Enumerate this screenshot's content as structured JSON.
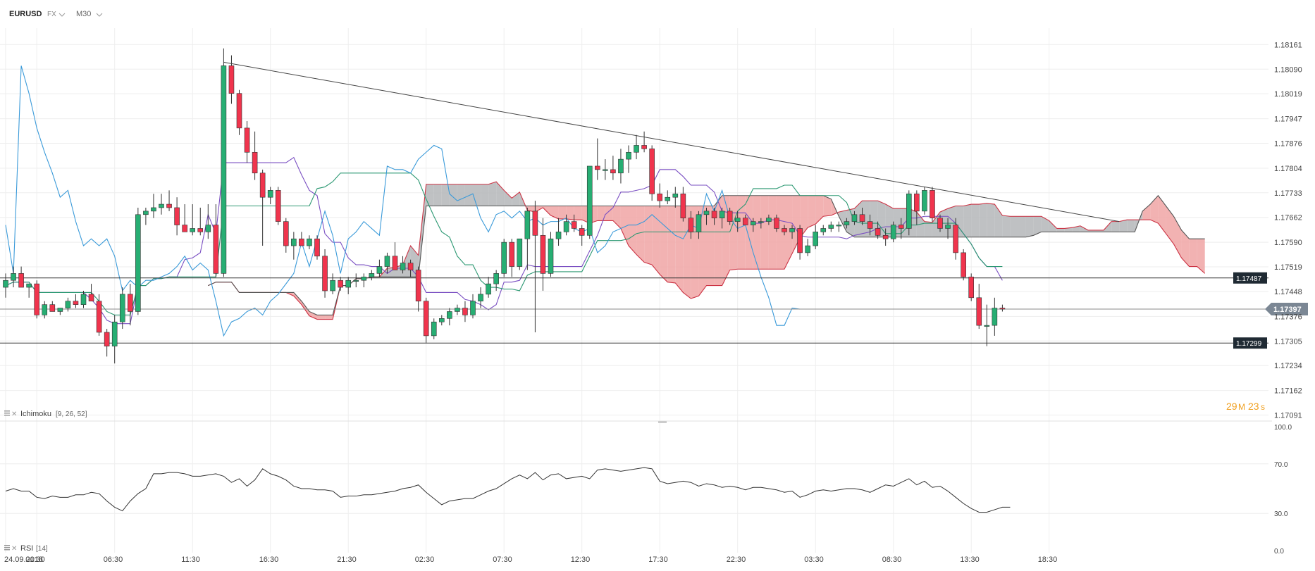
{
  "header": {
    "symbol": "EURUSD",
    "market": "FX",
    "timeframe": "M30"
  },
  "indicator_labels": {
    "ichimoku": "Ichimoku",
    "ichimoku_params": "[9, 26, 52]",
    "rsi": "RSI",
    "rsi_params": "[14]"
  },
  "countdown": {
    "minutes": "29",
    "minutes_unit": "M",
    "seconds": "23",
    "seconds_unit": "s"
  },
  "colors": {
    "bull": "#27ae73",
    "bear": "#f0344d",
    "cloud_bear": "#f0a4a4",
    "cloud_bull": "#b4b6b9",
    "tenkan": "#7a4fc2",
    "kijun": "#2b9872",
    "chikou": "#3a9ad9",
    "price_line": "#333333",
    "trend_line": "#444444",
    "grid": "#eeeeee"
  },
  "chart_data": [
    {
      "type": "candlestick",
      "title": "",
      "symbol": "EURUSD",
      "timeframe": "M30",
      "y_ticks": [
        "1.18161",
        "1.18090",
        "1.18019",
        "1.17947",
        "1.17876",
        "1.17804",
        "1.17733",
        "1.17662",
        "1.17590",
        "1.17519",
        "1.17448",
        "1.17376",
        "1.17305",
        "1.17234",
        "1.17162",
        "1.17091"
      ],
      "x_ticks": [
        "24.09.2018",
        "01:30",
        "06:30",
        "11:30",
        "16:30",
        "21:30",
        "02:30",
        "07:30",
        "12:30",
        "17:30",
        "22:30",
        "03:30",
        "08:30",
        "13:30",
        "18:30"
      ],
      "ylim": [
        1.1709,
        1.1818
      ],
      "horizontal_levels": [
        {
          "label": "1.17487",
          "value": 1.17487
        },
        {
          "label": "1.17397",
          "value": 1.17397,
          "current": true
        },
        {
          "label": "1.17299",
          "value": 1.17299
        }
      ],
      "grid": true,
      "candles": [
        [
          1.1746,
          1.175,
          1.1743,
          1.1748
        ],
        [
          1.1748,
          1.1752,
          1.1746,
          1.175
        ],
        [
          1.175,
          1.1752,
          1.1747,
          1.1746
        ],
        [
          1.1746,
          1.1747,
          1.1743,
          1.1747
        ],
        [
          1.1747,
          1.1748,
          1.1737,
          1.1738
        ],
        [
          1.1738,
          1.1742,
          1.1737,
          1.1741
        ],
        [
          1.1741,
          1.1742,
          1.1739,
          1.1739
        ],
        [
          1.1739,
          1.174,
          1.1738,
          1.174
        ],
        [
          1.174,
          1.1743,
          1.1739,
          1.1742
        ],
        [
          1.1742,
          1.1744,
          1.174,
          1.1741
        ],
        [
          1.1741,
          1.1745,
          1.174,
          1.1744
        ],
        [
          1.1744,
          1.1747,
          1.1742,
          1.1742
        ],
        [
          1.1742,
          1.1744,
          1.1732,
          1.1733
        ],
        [
          1.1733,
          1.1734,
          1.1726,
          1.1729
        ],
        [
          1.1729,
          1.1738,
          1.1724,
          1.1736
        ],
        [
          1.1736,
          1.1746,
          1.1734,
          1.1744
        ],
        [
          1.1744,
          1.1747,
          1.1735,
          1.1739
        ],
        [
          1.1739,
          1.1769,
          1.1738,
          1.1767
        ],
        [
          1.1767,
          1.1769,
          1.1764,
          1.1768
        ],
        [
          1.1768,
          1.1773,
          1.1766,
          1.1769
        ],
        [
          1.1769,
          1.1773,
          1.1767,
          1.177
        ],
        [
          1.177,
          1.1774,
          1.1768,
          1.1769
        ],
        [
          1.1769,
          1.1772,
          1.1761,
          1.1764
        ],
        [
          1.1764,
          1.177,
          1.1762,
          1.1762
        ],
        [
          1.1762,
          1.177,
          1.1761,
          1.1763
        ],
        [
          1.1763,
          1.1769,
          1.1761,
          1.1762
        ],
        [
          1.1762,
          1.177,
          1.176,
          1.1764
        ],
        [
          1.1764,
          1.177,
          1.1749,
          1.175
        ],
        [
          1.175,
          1.1815,
          1.1749,
          1.181
        ],
        [
          1.181,
          1.1813,
          1.1799,
          1.1802
        ],
        [
          1.1802,
          1.1803,
          1.179,
          1.1792
        ],
        [
          1.1792,
          1.1794,
          1.1782,
          1.1785
        ],
        [
          1.1785,
          1.1791,
          1.1777,
          1.1779
        ],
        [
          1.1779,
          1.178,
          1.1758,
          1.1772
        ],
        [
          1.1772,
          1.1775,
          1.177,
          1.1774
        ],
        [
          1.1774,
          1.1775,
          1.1764,
          1.1765
        ],
        [
          1.1765,
          1.1766,
          1.1756,
          1.1758
        ],
        [
          1.1758,
          1.1762,
          1.1754,
          1.176
        ],
        [
          1.176,
          1.1762,
          1.1759,
          1.1758
        ],
        [
          1.1758,
          1.1761,
          1.1757,
          1.176
        ],
        [
          1.176,
          1.1761,
          1.1754,
          1.1755
        ],
        [
          1.1755,
          1.1757,
          1.1743,
          1.1745
        ],
        [
          1.1745,
          1.175,
          1.1744,
          1.1748
        ],
        [
          1.1748,
          1.1749,
          1.1745,
          1.1746
        ],
        [
          1.1746,
          1.1749,
          1.1744,
          1.1748
        ],
        [
          1.1748,
          1.175,
          1.1746,
          1.1748
        ],
        [
          1.1748,
          1.175,
          1.1746,
          1.1749
        ],
        [
          1.1749,
          1.1751,
          1.1748,
          1.175
        ],
        [
          1.175,
          1.1754,
          1.1749,
          1.1752
        ],
        [
          1.1752,
          1.1756,
          1.175,
          1.1755
        ],
        [
          1.1755,
          1.1759,
          1.1751,
          1.1751
        ],
        [
          1.1751,
          1.1755,
          1.175,
          1.1753
        ],
        [
          1.1753,
          1.1754,
          1.1749,
          1.1751
        ],
        [
          1.1751,
          1.1752,
          1.1739,
          1.1742
        ],
        [
          1.1742,
          1.1743,
          1.173,
          1.1732
        ],
        [
          1.1732,
          1.1737,
          1.1731,
          1.1736
        ],
        [
          1.1736,
          1.1738,
          1.1735,
          1.1737
        ],
        [
          1.1737,
          1.174,
          1.1735,
          1.1739
        ],
        [
          1.1739,
          1.1741,
          1.1738,
          1.174
        ],
        [
          1.174,
          1.1742,
          1.1736,
          1.1738
        ],
        [
          1.1738,
          1.1744,
          1.1737,
          1.1742
        ],
        [
          1.1742,
          1.1746,
          1.174,
          1.1744
        ],
        [
          1.1744,
          1.1749,
          1.1743,
          1.1747
        ],
        [
          1.1747,
          1.1751,
          1.1745,
          1.175
        ],
        [
          1.175,
          1.176,
          1.1749,
          1.1759
        ],
        [
          1.1759,
          1.176,
          1.1749,
          1.1752
        ],
        [
          1.1752,
          1.176,
          1.1751,
          1.176
        ],
        [
          1.176,
          1.1769,
          1.1751,
          1.1768
        ],
        [
          1.1768,
          1.1771,
          1.1733,
          1.1761
        ],
        [
          1.1761,
          1.1766,
          1.1745,
          1.175
        ],
        [
          1.175,
          1.1762,
          1.1749,
          1.176
        ],
        [
          1.176,
          1.1766,
          1.1758,
          1.1762
        ],
        [
          1.1762,
          1.1767,
          1.1761,
          1.1765
        ],
        [
          1.1765,
          1.1767,
          1.1762,
          1.1763
        ],
        [
          1.1763,
          1.1764,
          1.1758,
          1.1761
        ],
        [
          1.1761,
          1.178,
          1.176,
          1.1781
        ],
        [
          1.1781,
          1.1789,
          1.1777,
          1.178
        ],
        [
          1.178,
          1.1783,
          1.1777,
          1.178
        ],
        [
          1.178,
          1.1784,
          1.1777,
          1.1779
        ],
        [
          1.1779,
          1.1786,
          1.1776,
          1.1783
        ],
        [
          1.1783,
          1.1787,
          1.1779,
          1.1785
        ],
        [
          1.1785,
          1.179,
          1.1783,
          1.1787
        ],
        [
          1.1787,
          1.1791,
          1.1785,
          1.1786
        ],
        [
          1.1786,
          1.1787,
          1.1771,
          1.1773
        ],
        [
          1.1773,
          1.1776,
          1.1769,
          1.1771
        ],
        [
          1.1771,
          1.1774,
          1.177,
          1.1772
        ],
        [
          1.1772,
          1.1775,
          1.1769,
          1.1773
        ],
        [
          1.1773,
          1.1775,
          1.1765,
          1.1766
        ],
        [
          1.1766,
          1.1768,
          1.176,
          1.1762
        ],
        [
          1.1762,
          1.1768,
          1.176,
          1.1767
        ],
        [
          1.1767,
          1.1769,
          1.1764,
          1.1768
        ],
        [
          1.1768,
          1.1769,
          1.1764,
          1.1766
        ],
        [
          1.1766,
          1.1769,
          1.1763,
          1.1768
        ],
        [
          1.1768,
          1.1769,
          1.1764,
          1.1765
        ],
        [
          1.1765,
          1.1768,
          1.1762,
          1.1766
        ],
        [
          1.1766,
          1.1767,
          1.1764,
          1.1764
        ],
        [
          1.1764,
          1.1766,
          1.1762,
          1.1765
        ],
        [
          1.1765,
          1.1766,
          1.1763,
          1.1765
        ],
        [
          1.1765,
          1.1767,
          1.1764,
          1.1766
        ],
        [
          1.1766,
          1.1767,
          1.1762,
          1.1763
        ],
        [
          1.1763,
          1.1764,
          1.1761,
          1.1762
        ],
        [
          1.1762,
          1.1764,
          1.176,
          1.1763
        ],
        [
          1.1763,
          1.1764,
          1.1754,
          1.1756
        ],
        [
          1.1756,
          1.176,
          1.1755,
          1.1758
        ],
        [
          1.1758,
          1.1764,
          1.1757,
          1.1762
        ],
        [
          1.1762,
          1.1764,
          1.1761,
          1.1763
        ],
        [
          1.1763,
          1.1765,
          1.1762,
          1.1764
        ],
        [
          1.1764,
          1.1765,
          1.1762,
          1.1764
        ],
        [
          1.1764,
          1.1766,
          1.1763,
          1.1765
        ],
        [
          1.1765,
          1.1768,
          1.1764,
          1.1767
        ],
        [
          1.1767,
          1.1769,
          1.1764,
          1.1765
        ],
        [
          1.1765,
          1.1767,
          1.1761,
          1.1763
        ],
        [
          1.1763,
          1.1765,
          1.176,
          1.1761
        ],
        [
          1.1761,
          1.1763,
          1.1758,
          1.176
        ],
        [
          1.176,
          1.1765,
          1.1759,
          1.1764
        ],
        [
          1.1764,
          1.1766,
          1.176,
          1.1763
        ],
        [
          1.1763,
          1.1774,
          1.1761,
          1.1773
        ],
        [
          1.1773,
          1.1774,
          1.1764,
          1.1768
        ],
        [
          1.1768,
          1.1775,
          1.1767,
          1.1774
        ],
        [
          1.1774,
          1.1775,
          1.1765,
          1.1766
        ],
        [
          1.1766,
          1.1767,
          1.1762,
          1.1763
        ],
        [
          1.1763,
          1.1766,
          1.176,
          1.1764
        ],
        [
          1.1764,
          1.1766,
          1.1754,
          1.1756
        ],
        [
          1.1756,
          1.1757,
          1.1748,
          1.1749
        ],
        [
          1.1749,
          1.175,
          1.1742,
          1.1743
        ],
        [
          1.1743,
          1.1747,
          1.1734,
          1.1735
        ],
        [
          1.1735,
          1.1741,
          1.1729,
          1.1735
        ],
        [
          1.1735,
          1.1743,
          1.1732,
          1.174
        ],
        [
          1.174,
          1.1741,
          1.1739,
          1.17397
        ]
      ],
      "trend_line": [
        [
          28,
          1.1811
        ],
        [
          143,
          1.1765
        ]
      ]
    },
    {
      "type": "line",
      "title": "",
      "indicator": "RSI",
      "params": "[14]",
      "y_ticks": [
        "100.0",
        "70.0",
        "30.0",
        "0.0"
      ],
      "ylim": [
        0,
        100
      ],
      "grid": true,
      "values": [
        48,
        50,
        48,
        48,
        43,
        42,
        44,
        43,
        43,
        45,
        45,
        47,
        46,
        40,
        35,
        32,
        40,
        46,
        50,
        62,
        62,
        63,
        63,
        62,
        60,
        60,
        61,
        62,
        60,
        55,
        58,
        52,
        57,
        66,
        62,
        60,
        57,
        52,
        50,
        50,
        49,
        49,
        48,
        43,
        44,
        44,
        45,
        45,
        46,
        47,
        48,
        50,
        51,
        53,
        47,
        42,
        37,
        40,
        41,
        42,
        42,
        45,
        48,
        50,
        54,
        58,
        61,
        58,
        63,
        57,
        61,
        62,
        58,
        59,
        60,
        58,
        65,
        66,
        65,
        64,
        65,
        66,
        67,
        66,
        56,
        54,
        55,
        56,
        55,
        52,
        54,
        53,
        51,
        52,
        51,
        49,
        51,
        51,
        50,
        49,
        47,
        48,
        43,
        45,
        48,
        49,
        48,
        49,
        50,
        50,
        49,
        47,
        50,
        53,
        52,
        55,
        58,
        53,
        56,
        51,
        52,
        48,
        43,
        38,
        34,
        31,
        31,
        33,
        35,
        35
      ]
    }
  ]
}
